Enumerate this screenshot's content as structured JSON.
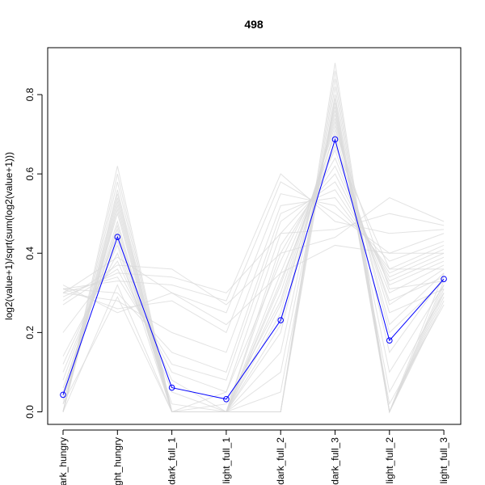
{
  "chart_data": {
    "type": "line",
    "title": "498",
    "xlabel": "",
    "ylabel": "log2(value+1)/sqrt(sum(log2(value+1)))",
    "categories": [
      "dark_hungry",
      "light_hungry",
      "dark_full_1",
      "light_full_1",
      "dark_full_2",
      "dark_full_3",
      "light_full_2",
      "light_full_3"
    ],
    "category_labels_shown": [
      "ark_hungry",
      "ght_hungry",
      "dark_full_1",
      "light_full_1",
      "dark_full_2",
      "dark_full_3",
      "light_full_2",
      "light_full_3"
    ],
    "yticks": [
      "0.0",
      "0.2",
      "0.4",
      "0.6",
      "0.8"
    ],
    "ylim": [
      -0.03,
      0.88
    ],
    "grid": false,
    "legend": "none",
    "highlight_series": {
      "values": [
        0.043,
        0.441,
        0.061,
        0.032,
        0.231,
        0.687,
        0.18,
        0.335
      ],
      "color": "#0000ff"
    },
    "background_series_color": "#d9d9d9",
    "background_series": [
      [
        0.0,
        0.62,
        0.0,
        0.0,
        0.0,
        0.88,
        0.0,
        0.35
      ],
      [
        0.0,
        0.6,
        0.0,
        0.0,
        0.0,
        0.86,
        0.0,
        0.33
      ],
      [
        0.0,
        0.58,
        0.0,
        0.0,
        0.0,
        0.84,
        0.0,
        0.32
      ],
      [
        0.0,
        0.56,
        0.0,
        0.0,
        0.0,
        0.82,
        0.0,
        0.3
      ],
      [
        0.0,
        0.55,
        0.0,
        0.0,
        0.0,
        0.8,
        0.0,
        0.29
      ],
      [
        0.0,
        0.54,
        0.0,
        0.0,
        0.05,
        0.79,
        0.0,
        0.31
      ],
      [
        0.0,
        0.53,
        0.0,
        0.0,
        0.1,
        0.78,
        0.0,
        0.28
      ],
      [
        0.0,
        0.52,
        0.0,
        0.0,
        0.15,
        0.77,
        0.02,
        0.27
      ],
      [
        0.02,
        0.51,
        0.0,
        0.0,
        0.2,
        0.76,
        0.05,
        0.3
      ],
      [
        0.03,
        0.5,
        0.0,
        0.0,
        0.22,
        0.75,
        0.1,
        0.32
      ],
      [
        0.05,
        0.48,
        0.0,
        0.0,
        0.25,
        0.74,
        0.15,
        0.34
      ],
      [
        0.04,
        0.47,
        0.0,
        0.02,
        0.28,
        0.73,
        0.2,
        0.33
      ],
      [
        0.06,
        0.46,
        0.0,
        0.0,
        0.3,
        0.72,
        0.22,
        0.35
      ],
      [
        0.08,
        0.45,
        0.0,
        0.0,
        0.32,
        0.7,
        0.25,
        0.31
      ],
      [
        0.1,
        0.43,
        0.02,
        0.0,
        0.35,
        0.68,
        0.27,
        0.36
      ],
      [
        0.12,
        0.42,
        0.0,
        0.05,
        0.38,
        0.66,
        0.28,
        0.34
      ],
      [
        0.14,
        0.4,
        0.05,
        0.0,
        0.4,
        0.64,
        0.3,
        0.37
      ],
      [
        0.2,
        0.38,
        0.08,
        0.0,
        0.42,
        0.62,
        0.32,
        0.38
      ],
      [
        0.27,
        0.36,
        0.1,
        0.05,
        0.45,
        0.6,
        0.33,
        0.39
      ],
      [
        0.3,
        0.34,
        0.12,
        0.08,
        0.48,
        0.58,
        0.34,
        0.4
      ],
      [
        0.31,
        0.3,
        0.15,
        0.1,
        0.5,
        0.56,
        0.35,
        0.41
      ],
      [
        0.3,
        0.28,
        0.2,
        0.15,
        0.52,
        0.54,
        0.36,
        0.42
      ],
      [
        0.31,
        0.26,
        0.28,
        0.2,
        0.55,
        0.52,
        0.38,
        0.43
      ],
      [
        0.32,
        0.25,
        0.3,
        0.25,
        0.58,
        0.5,
        0.4,
        0.45
      ],
      [
        0.31,
        0.33,
        0.32,
        0.28,
        0.6,
        0.48,
        0.45,
        0.46
      ],
      [
        0.29,
        0.35,
        0.34,
        0.3,
        0.45,
        0.46,
        0.5,
        0.47
      ],
      [
        0.28,
        0.37,
        0.36,
        0.27,
        0.4,
        0.44,
        0.54,
        0.48
      ],
      [
        0.3,
        0.39,
        0.3,
        0.22,
        0.35,
        0.42,
        0.4,
        0.4
      ],
      [
        0.02,
        0.29,
        0.0,
        0.0,
        0.33,
        0.67,
        0.36,
        0.36
      ],
      [
        0.0,
        0.32,
        0.0,
        0.0,
        0.27,
        0.71,
        0.31,
        0.33
      ]
    ]
  }
}
